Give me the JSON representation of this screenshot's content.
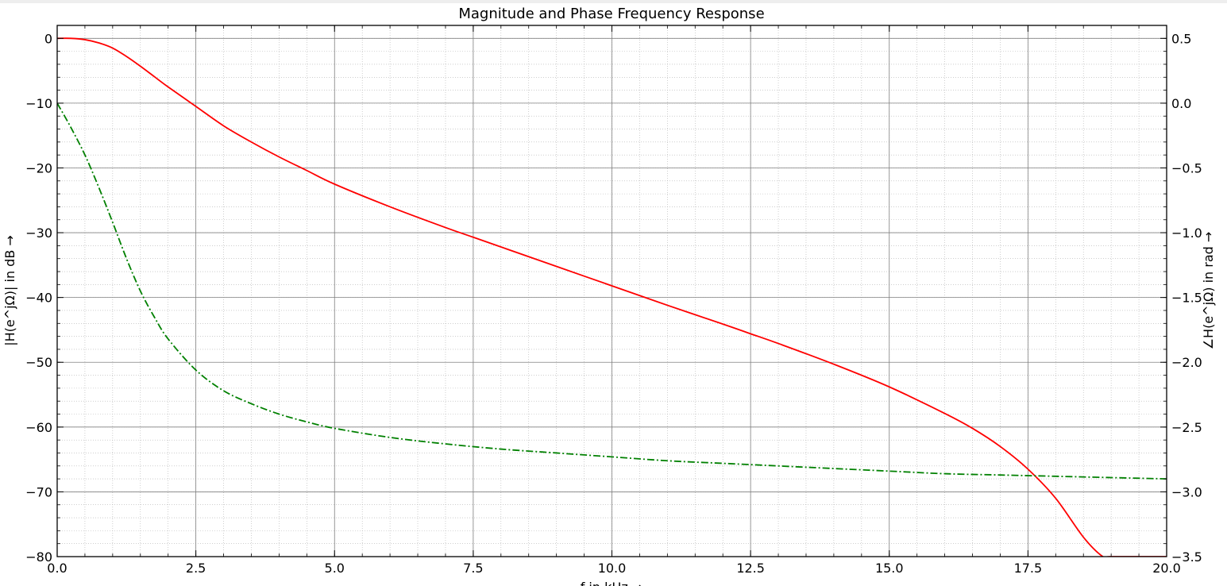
{
  "chart_data": {
    "type": "line",
    "title": "Magnitude and Phase Frequency Response",
    "xlabel": "f in kHz  →",
    "ylabel_left": "|H(e^jΩ)| in dB  →",
    "ylabel_right": "∠H(e^jΩ) in rad  →",
    "xlim": [
      0,
      20
    ],
    "ylim_left": [
      -80,
      2
    ],
    "ylim_right": [
      -3.5,
      0.6
    ],
    "x_ticks": [
      "0.0",
      "2.5",
      "5.0",
      "7.5",
      "10.0",
      "12.5",
      "15.0",
      "17.5",
      "20.0"
    ],
    "y_left_ticks": [
      "0",
      "−10",
      "−20",
      "−30",
      "−40",
      "−50",
      "−60",
      "−70",
      "−80"
    ],
    "y_right_ticks": [
      "0.5",
      "0.0",
      "−0.5",
      "−1.0",
      "−1.5",
      "−2.0",
      "−2.5",
      "−3.0",
      "−3.5"
    ],
    "grid": true,
    "series": [
      {
        "axis": "left",
        "color": "#ff0000",
        "style": "solid",
        "x": [
          0,
          0.25,
          0.5,
          0.75,
          1.0,
          1.25,
          1.5,
          1.75,
          2.0,
          2.5,
          3.0,
          3.5,
          4.0,
          4.5,
          5.0,
          6.0,
          7.0,
          7.5,
          8.0,
          9.0,
          10.0,
          11.0,
          12.0,
          12.5,
          13.0,
          14.0,
          15.0,
          16.0,
          16.5,
          17.0,
          17.5,
          18.0,
          18.5,
          18.85,
          19.0,
          20.0
        ],
        "y": [
          0,
          0,
          -0.2,
          -0.7,
          -1.5,
          -2.8,
          -4.3,
          -5.9,
          -7.5,
          -10.5,
          -13.5,
          -16.0,
          -18.3,
          -20.4,
          -22.5,
          -26.0,
          -29.2,
          -30.7,
          -32.2,
          -35.2,
          -38.2,
          -41.2,
          -44.1,
          -45.6,
          -47.1,
          -50.3,
          -53.8,
          -57.9,
          -60.2,
          -63.0,
          -66.5,
          -71.0,
          -77.0,
          -80.0,
          -80.0,
          -80.0
        ]
      },
      {
        "axis": "right",
        "color": "#008000",
        "style": "dashdot",
        "x": [
          0,
          0.25,
          0.5,
          0.75,
          1.0,
          1.25,
          1.5,
          1.75,
          2.0,
          2.5,
          3.0,
          3.5,
          4.0,
          4.5,
          5.0,
          6.0,
          7.0,
          8.0,
          9.0,
          10.0,
          11.0,
          12.0,
          13.0,
          14.0,
          15.0,
          16.0,
          17.0,
          18.0,
          19.0,
          20.0
        ],
        "y": [
          0.0,
          -0.19,
          -0.4,
          -0.65,
          -0.92,
          -1.2,
          -1.45,
          -1.65,
          -1.82,
          -2.06,
          -2.22,
          -2.32,
          -2.4,
          -2.46,
          -2.51,
          -2.58,
          -2.63,
          -2.67,
          -2.7,
          -2.73,
          -2.76,
          -2.78,
          -2.8,
          -2.82,
          -2.84,
          -2.86,
          -2.87,
          -2.88,
          -2.89,
          -2.9
        ]
      }
    ]
  }
}
